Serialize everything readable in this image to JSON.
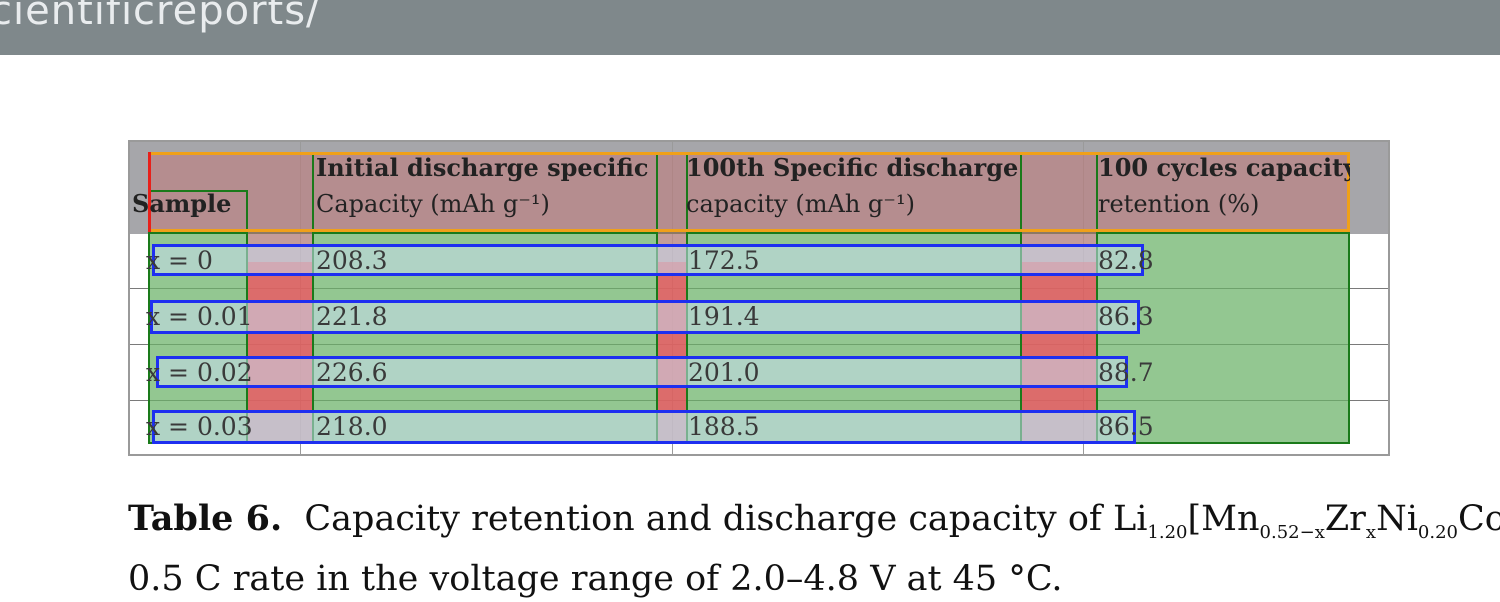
{
  "topbar": {
    "url": "cientificreports/"
  },
  "table": {
    "headers": [
      "Sample",
      "Initial discharge specific Capacity (mAh g⁻¹)",
      "100th Specific discharge capacity (mAh g⁻¹)",
      "100 cycles capacity retention (%)"
    ],
    "header_lines": [
      [
        "Sample"
      ],
      [
        "Initial discharge specific",
        "Capacity (mAh g⁻¹)"
      ],
      [
        "100th Specific discharge",
        "capacity (mAh g⁻¹)"
      ],
      [
        "100 cycles capacity",
        "retention (%)"
      ]
    ],
    "rows": [
      [
        "x = 0",
        "208.3",
        "172.5",
        "82.8"
      ],
      [
        "x = 0.01",
        "221.8",
        "191.4",
        "86.3"
      ],
      [
        "x = 0.02",
        "226.6",
        "201.0",
        "88.7"
      ],
      [
        "x = 0.03",
        "218.0",
        "188.5",
        "86.5"
      ]
    ]
  },
  "caption": {
    "label": "Table 6.",
    "line1": "Capacity retention and discharge capacity of Li",
    "sub1": "1.20",
    "mn": "[Mn",
    "sub2": "0.52−x",
    "zr": "Zr",
    "sub3": "x",
    "ni": "Ni",
    "sub4": "0.20",
    "co": "Co",
    "line2": "0.5 C rate in the voltage range of 2.0–4.8 V at 45 °C."
  },
  "colors": {
    "topbar": "#7f888b",
    "header_bg": "#a6a6aa",
    "annotation_green": "#69b266",
    "annotation_blue": "#1e2ff0",
    "annotation_orange": "#f0a019",
    "annotation_pink": "#ec78a0"
  }
}
